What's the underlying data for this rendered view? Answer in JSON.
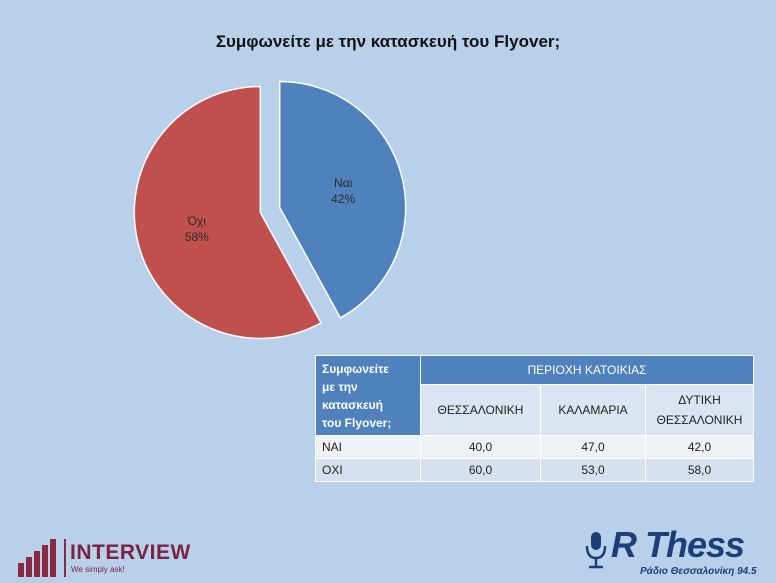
{
  "chart_data": {
    "type": "pie",
    "title": "Συμφωνείτε με την κατασκευή του Flyover;",
    "slices": [
      {
        "label": "Ναι",
        "percent_label": "42%",
        "value": 42,
        "color": "#4f81bd"
      },
      {
        "label": "Όχι",
        "percent_label": "58%",
        "value": 58,
        "color": "#c0504d"
      }
    ]
  },
  "table": {
    "question_lines": [
      "Συμφωνείτε",
      "με την",
      "κατασκευή",
      "του Flyover;"
    ],
    "group_header": "ΠΕΡΙΟΧΗ ΚΑΤΟΙΚΙΑΣ",
    "columns": [
      {
        "line1": "ΘΕΣΣΑΛΟΝΙΚΗ",
        "line2": ""
      },
      {
        "line1": "ΚΑΛΑΜΑΡΙΑ",
        "line2": ""
      },
      {
        "line1": "ΔΥΤΙΚΗ",
        "line2": "ΘΕΣΣΑΛΟΝΙΚΗ"
      }
    ],
    "rows": [
      {
        "label": "ΝΑΙ",
        "values": [
          "40,0",
          "47,0",
          "42,0"
        ]
      },
      {
        "label": "ΟΧΙ",
        "values": [
          "60,0",
          "53,0",
          "58,0"
        ]
      }
    ]
  },
  "logos": {
    "interview": {
      "name": "INTERVIEW",
      "tagline": "We simply ask!",
      "color": "#7a2343"
    },
    "rthess": {
      "name": "R Thess",
      "tagline": "Ράδιο Θεσσαλονίκη 94.5",
      "color": "#1f3e78"
    }
  }
}
